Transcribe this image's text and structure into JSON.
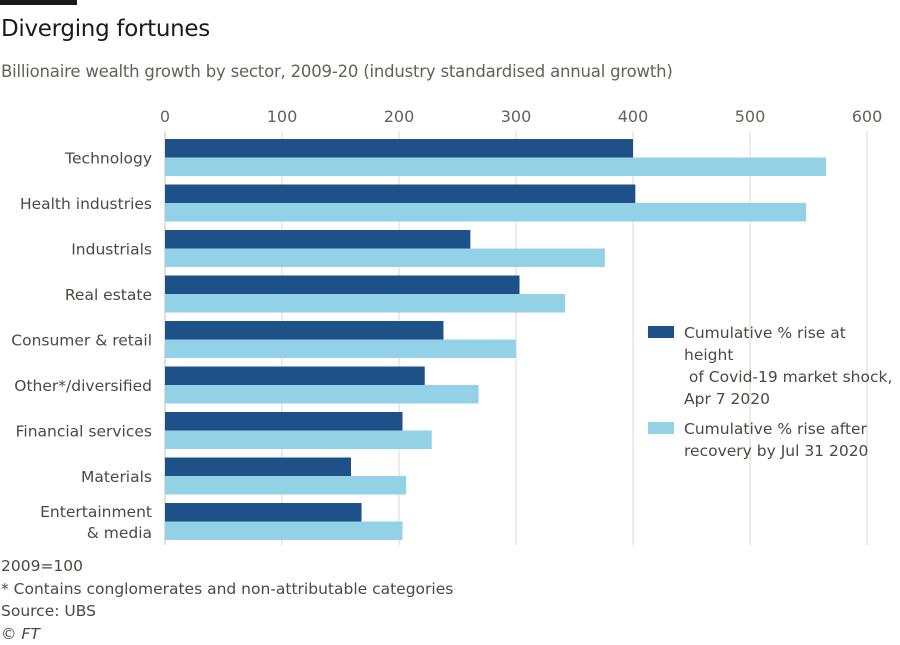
{
  "header": {
    "title": "Diverging fortunes",
    "subtitle": "Billionaire wealth growth by sector, 2009-20 (industry standardised annual growth)"
  },
  "chart_data": {
    "type": "bar",
    "orientation": "horizontal",
    "title": "Diverging fortunes",
    "subtitle": "Billionaire wealth growth by sector, 2009-20 (industry standardised annual growth)",
    "xlabel": "",
    "ylabel": "",
    "xlim": [
      0,
      600
    ],
    "xticks": [
      0,
      100,
      200,
      300,
      400,
      500,
      600
    ],
    "xtick_labels": [
      "0",
      "100",
      "200",
      "300",
      "400",
      "500",
      "600"
    ],
    "grid": "vertical",
    "legend_position": "right",
    "categories": [
      "Technology",
      "Health industries",
      "Industrials",
      "Real estate",
      "Consumer & retail",
      "Other*/diversified",
      "Financial services",
      "Materials",
      "Entertainment & media"
    ],
    "category_display": [
      [
        "Technology"
      ],
      [
        "Health industries"
      ],
      [
        "Industrials"
      ],
      [
        "Real estate"
      ],
      [
        "Consumer & retail"
      ],
      [
        "Other*/diversified"
      ],
      [
        "Financial services"
      ],
      [
        "Materials"
      ],
      [
        "Entertainment",
        "& media"
      ]
    ],
    "series": [
      {
        "name": "Cumulative % rise at height of Covid-19 market shock, Apr 7 2020",
        "color": "#1f5189",
        "values": [
          400,
          402,
          261,
          303,
          238,
          222,
          203,
          159,
          168
        ]
      },
      {
        "name": "Cumulative % rise after recovery by Jul 31 2020",
        "color": "#93d2e6",
        "values": [
          565,
          548,
          376,
          342,
          300,
          268,
          228,
          206,
          203
        ]
      }
    ]
  },
  "legend": {
    "items": [
      {
        "lines": [
          "Cumulative % rise at height",
          " of Covid-19 market shock,",
          "Apr 7 2020"
        ],
        "color": "#1f5189"
      },
      {
        "lines": [
          "Cumulative % rise after",
          "recovery by Jul 31 2020"
        ],
        "color": "#93d2e6"
      }
    ]
  },
  "footer": {
    "note": "2009=100",
    "footnote": "* Contains conglomerates and non-attributable categories",
    "source": "Source: UBS",
    "copyright": "© FT"
  },
  "colors": {
    "gridline": "#e6dfdb",
    "text": "#4d4845",
    "dark_series": "#1f5189",
    "light_series": "#93d2e6"
  }
}
